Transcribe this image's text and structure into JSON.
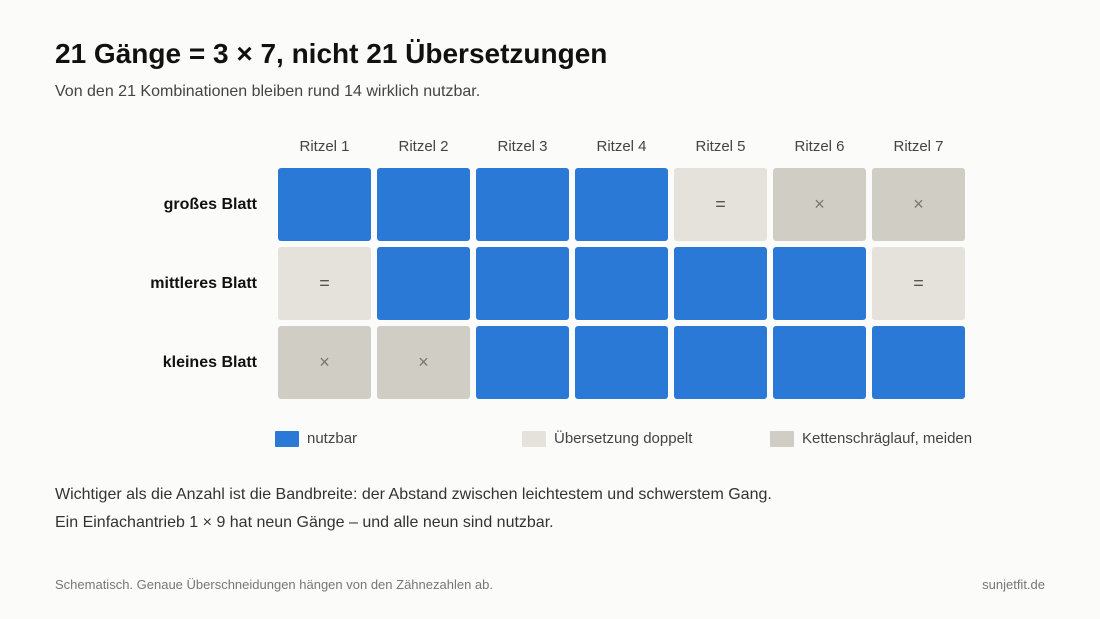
{
  "title": "21 Gänge = 3 × 7, nicht 21 Übersetzungen",
  "subtitle": "Von den 21 Kombinationen bleiben rund 14 wirklich nutzbar.",
  "columns": [
    "Ritzel 1",
    "Ritzel 2",
    "Ritzel 3",
    "Ritzel 4",
    "Ritzel 5",
    "Ritzel 6",
    "Ritzel 7"
  ],
  "rows": [
    {
      "label": "großes Blatt",
      "cells": [
        "usable",
        "usable",
        "usable",
        "usable",
        "duplicate",
        "avoid",
        "avoid"
      ]
    },
    {
      "label": "mittleres Blatt",
      "cells": [
        "duplicate",
        "usable",
        "usable",
        "usable",
        "usable",
        "usable",
        "duplicate"
      ]
    },
    {
      "label": "kleines Blatt",
      "cells": [
        "avoid",
        "avoid",
        "usable",
        "usable",
        "usable",
        "usable",
        "usable"
      ]
    }
  ],
  "cell_symbols": {
    "usable": "",
    "duplicate": "=",
    "avoid": "×"
  },
  "colors": {
    "usable": "#2b79d6",
    "duplicate": "#e5e2dc",
    "avoid": "#d0cdc5"
  },
  "legend": {
    "usable": "nutzbar",
    "duplicate": "Übersetzung doppelt",
    "avoid": "Kettenschräglauf, meiden"
  },
  "notes": [
    "Wichtiger als die Anzahl ist die Bandbreite: der Abstand zwischen leichtestem und schwerstem Gang.",
    "Ein Einfachantrieb 1 × 9 hat neun Gänge – und alle neun sind nutzbar."
  ],
  "footer": {
    "left": "Schematisch. Genaue Überschneidungen hängen von den Zähnezahlen ab.",
    "right": "sunjetfit.de"
  }
}
